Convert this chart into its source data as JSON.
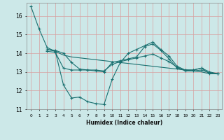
{
  "xlabel": "Humidex (Indice chaleur)",
  "bg_color": "#cce8e8",
  "grid_color": "#d8a0a0",
  "line_color": "#1a7070",
  "xlim": [
    -0.5,
    23.5
  ],
  "ylim": [
    11.0,
    16.7
  ],
  "yticks": [
    11,
    12,
    13,
    14,
    15,
    16
  ],
  "xticks": [
    0,
    1,
    2,
    3,
    4,
    5,
    6,
    7,
    8,
    9,
    10,
    11,
    12,
    13,
    14,
    15,
    16,
    17,
    18,
    19,
    20,
    21,
    22,
    23
  ],
  "series1_x": [
    0,
    1,
    2,
    3,
    4,
    5,
    6,
    7,
    8,
    9,
    10,
    11,
    12,
    13,
    14,
    15,
    16,
    17,
    18,
    19,
    20,
    21,
    22,
    23
  ],
  "series1_y": [
    16.5,
    15.3,
    14.3,
    14.1,
    12.3,
    11.6,
    11.65,
    11.4,
    11.3,
    11.25,
    12.6,
    13.5,
    14.0,
    14.2,
    14.4,
    14.6,
    14.2,
    13.85,
    13.3,
    13.1,
    13.1,
    13.2,
    12.9,
    12.9
  ],
  "series2_x": [
    2,
    3,
    4,
    5,
    6,
    7,
    8,
    9,
    10,
    11,
    12,
    13,
    14,
    15,
    16,
    17,
    18,
    19,
    20,
    21,
    22,
    23
  ],
  "series2_y": [
    14.1,
    14.05,
    13.2,
    13.1,
    13.1,
    13.1,
    13.1,
    13.05,
    13.4,
    13.55,
    13.65,
    13.75,
    13.85,
    13.95,
    13.75,
    13.55,
    13.25,
    13.05,
    13.05,
    13.1,
    12.95,
    12.9
  ],
  "series3_x": [
    2,
    3,
    4,
    5,
    6,
    7,
    8,
    9,
    10,
    11,
    12,
    13,
    14,
    15,
    16,
    17,
    18,
    19,
    20,
    21,
    22,
    23
  ],
  "series3_y": [
    14.2,
    14.1,
    13.9,
    13.8,
    13.75,
    13.7,
    13.65,
    13.6,
    13.55,
    13.5,
    13.45,
    13.4,
    13.35,
    13.3,
    13.25,
    13.2,
    13.15,
    13.1,
    13.05,
    13.0,
    12.9,
    12.9
  ],
  "series4_x": [
    2,
    3,
    4,
    5,
    6,
    7,
    8,
    9,
    10,
    11,
    12,
    13,
    14,
    15,
    16,
    17,
    18,
    19,
    20,
    21,
    22,
    23
  ],
  "series4_y": [
    14.2,
    14.15,
    14.0,
    13.5,
    13.15,
    13.1,
    13.05,
    13.0,
    13.5,
    13.6,
    13.7,
    13.8,
    14.35,
    14.5,
    14.15,
    13.7,
    13.2,
    13.1,
    13.1,
    13.2,
    13.0,
    12.9
  ]
}
